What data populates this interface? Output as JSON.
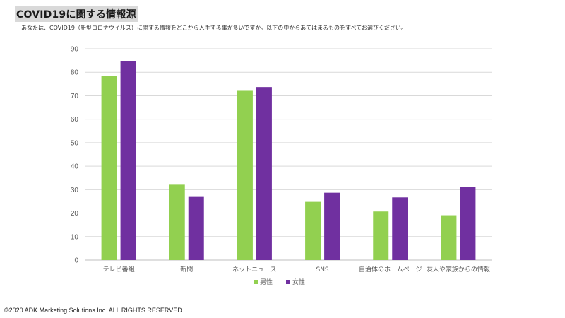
{
  "header": {
    "title": "COVID19に関する情報源",
    "question": "あなたは、COVID19（新型コロナウイルス）に関する情報をどこから入手する事が多いですか。以下の中からあてはまるものをすべてお選びください。"
  },
  "footer": {
    "copyright": "©2020 ADK Marketing Solutions Inc. ALL RIGHTS RESERVED."
  },
  "chart_data": {
    "type": "bar",
    "categories": [
      "テレビ番組",
      "新聞",
      "ネットニュース",
      "SNS",
      "自治体のホームページ",
      "友人や家族からの情報"
    ],
    "series": [
      {
        "name": "男性",
        "color": "#92d050",
        "values": [
          78.3,
          32.1,
          72.1,
          24.8,
          20.7,
          19.1
        ]
      },
      {
        "name": "女性",
        "color": "#7030a0",
        "values": [
          84.8,
          26.9,
          73.7,
          28.7,
          26.7,
          31.1
        ]
      }
    ],
    "ylim": [
      0,
      90
    ],
    "yticks": [
      "0",
      "10",
      "20",
      "30",
      "40",
      "50",
      "60",
      "70",
      "80",
      "90"
    ],
    "grid": true,
    "legend_position": "bottom"
  }
}
